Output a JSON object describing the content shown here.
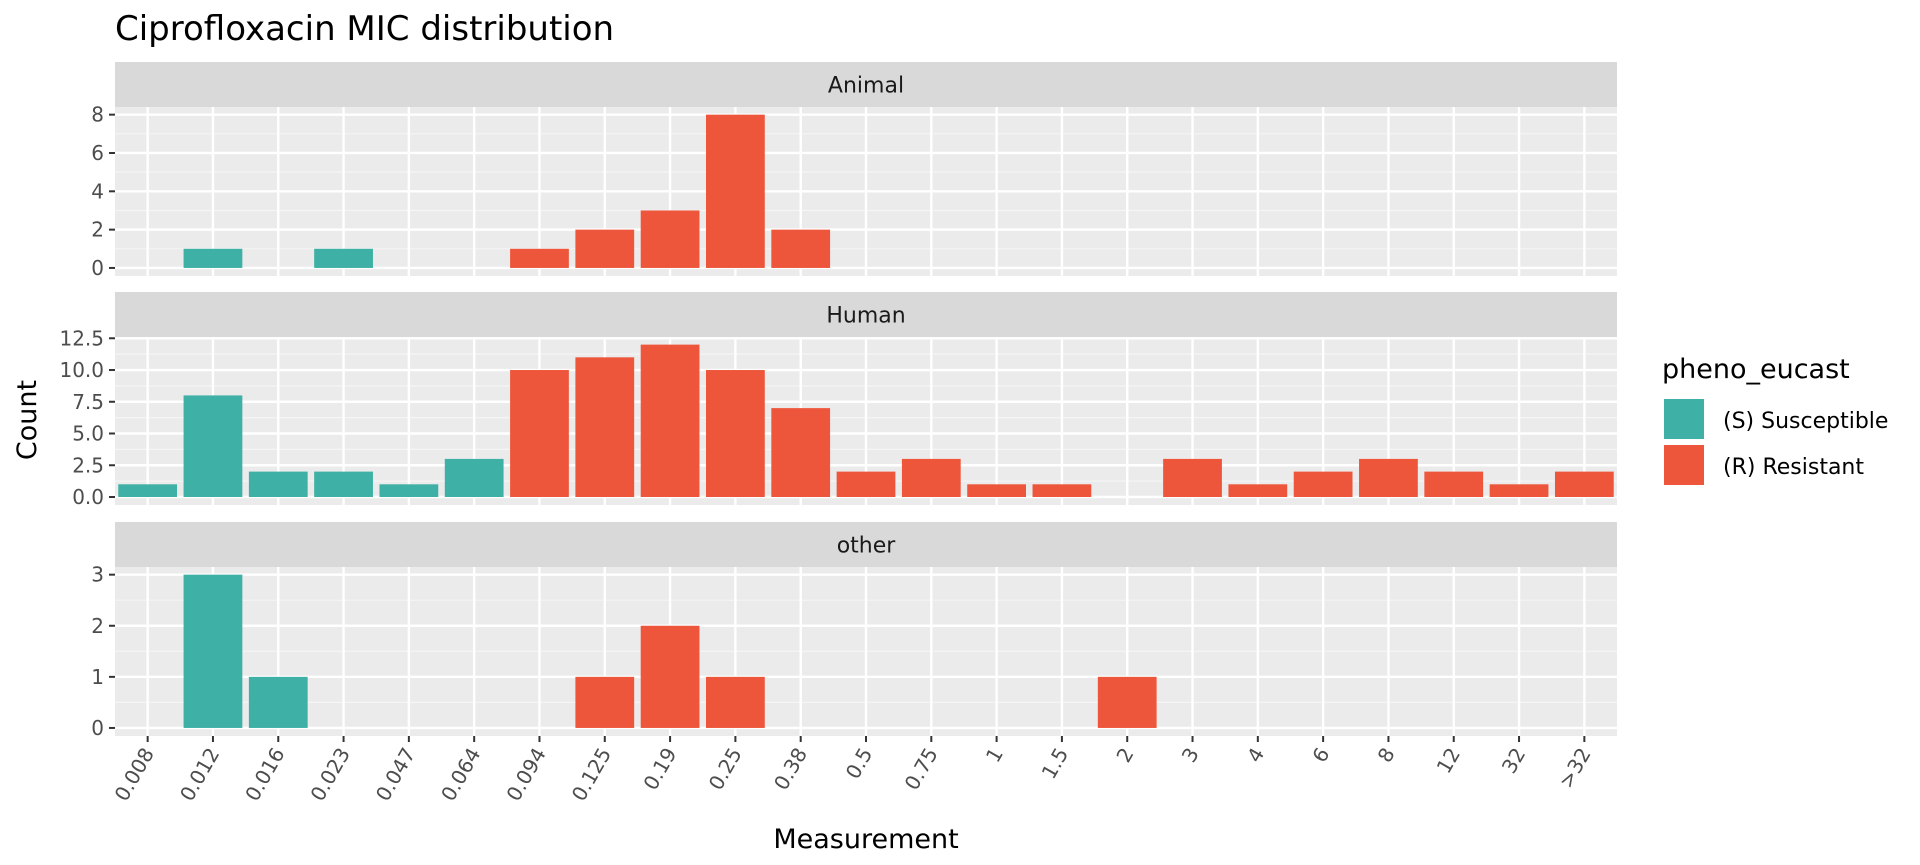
{
  "chart_data": {
    "type": "bar",
    "title": "Ciprofloxacin MIC distribution",
    "xlabel": "Measurement",
    "ylabel": "Count",
    "categories": [
      "0.008",
      "0.012",
      "0.016",
      "0.023",
      "0.047",
      "0.064",
      "0.094",
      "0.125",
      "0.19",
      "0.25",
      "0.38",
      "0.5",
      "0.75",
      "1",
      "1.5",
      "2",
      "3",
      "4",
      "6",
      "8",
      "12",
      "32",
      ">32"
    ],
    "legend": {
      "title": "pheno_eucast",
      "placement": "right",
      "entries": [
        {
          "label": "(S) Susceptible",
          "color": "#3EB0A5"
        },
        {
          "label": "(R) Resistant",
          "color": "#EE563C"
        }
      ]
    },
    "grid": true,
    "facets": [
      {
        "label": "Animal",
        "ylim": [
          0,
          8.4
        ],
        "yticks": [
          0,
          2,
          4,
          6,
          8
        ],
        "ytick_labels": [
          "0",
          "2",
          "4",
          "6",
          "8"
        ],
        "values": [
          0,
          1,
          0,
          1,
          0,
          0,
          1,
          2,
          3,
          8,
          2,
          0,
          0,
          0,
          0,
          0,
          0,
          0,
          0,
          0,
          0,
          0,
          0
        ],
        "phenotype": [
          "",
          "S",
          "",
          "S",
          "",
          "",
          "R",
          "R",
          "R",
          "R",
          "R",
          "",
          "",
          "",
          "",
          "",
          "",
          "",
          "",
          "",
          "",
          "",
          ""
        ]
      },
      {
        "label": "Human",
        "ylim": [
          0,
          12.6
        ],
        "yticks": [
          0,
          2.5,
          5,
          7.5,
          10,
          12.5
        ],
        "ytick_labels": [
          "0.0",
          "2.5",
          "5.0",
          "7.5",
          "10.0",
          "12.5"
        ],
        "values": [
          1,
          8,
          2,
          2,
          1,
          3,
          10,
          11,
          12,
          10,
          7,
          2,
          3,
          1,
          1,
          0,
          3,
          1,
          2,
          3,
          2,
          1,
          2
        ],
        "phenotype": [
          "S",
          "S",
          "S",
          "S",
          "S",
          "S",
          "R",
          "R",
          "R",
          "R",
          "R",
          "R",
          "R",
          "R",
          "R",
          "",
          "R",
          "R",
          "R",
          "R",
          "R",
          "R",
          "R"
        ]
      },
      {
        "label": "other",
        "ylim": [
          0,
          3.15
        ],
        "yticks": [
          0,
          1,
          2,
          3
        ],
        "ytick_labels": [
          "0",
          "1",
          "2",
          "3"
        ],
        "values": [
          0,
          3,
          1,
          0,
          0,
          0,
          0,
          1,
          2,
          1,
          0,
          0,
          0,
          0,
          0,
          1,
          0,
          0,
          0,
          0,
          0,
          0,
          0
        ],
        "phenotype": [
          "",
          "S",
          "S",
          "",
          "",
          "",
          "",
          "R",
          "R",
          "R",
          "",
          "",
          "",
          "",
          "",
          "R",
          "",
          "",
          "",
          "",
          "",
          "",
          ""
        ]
      }
    ]
  }
}
